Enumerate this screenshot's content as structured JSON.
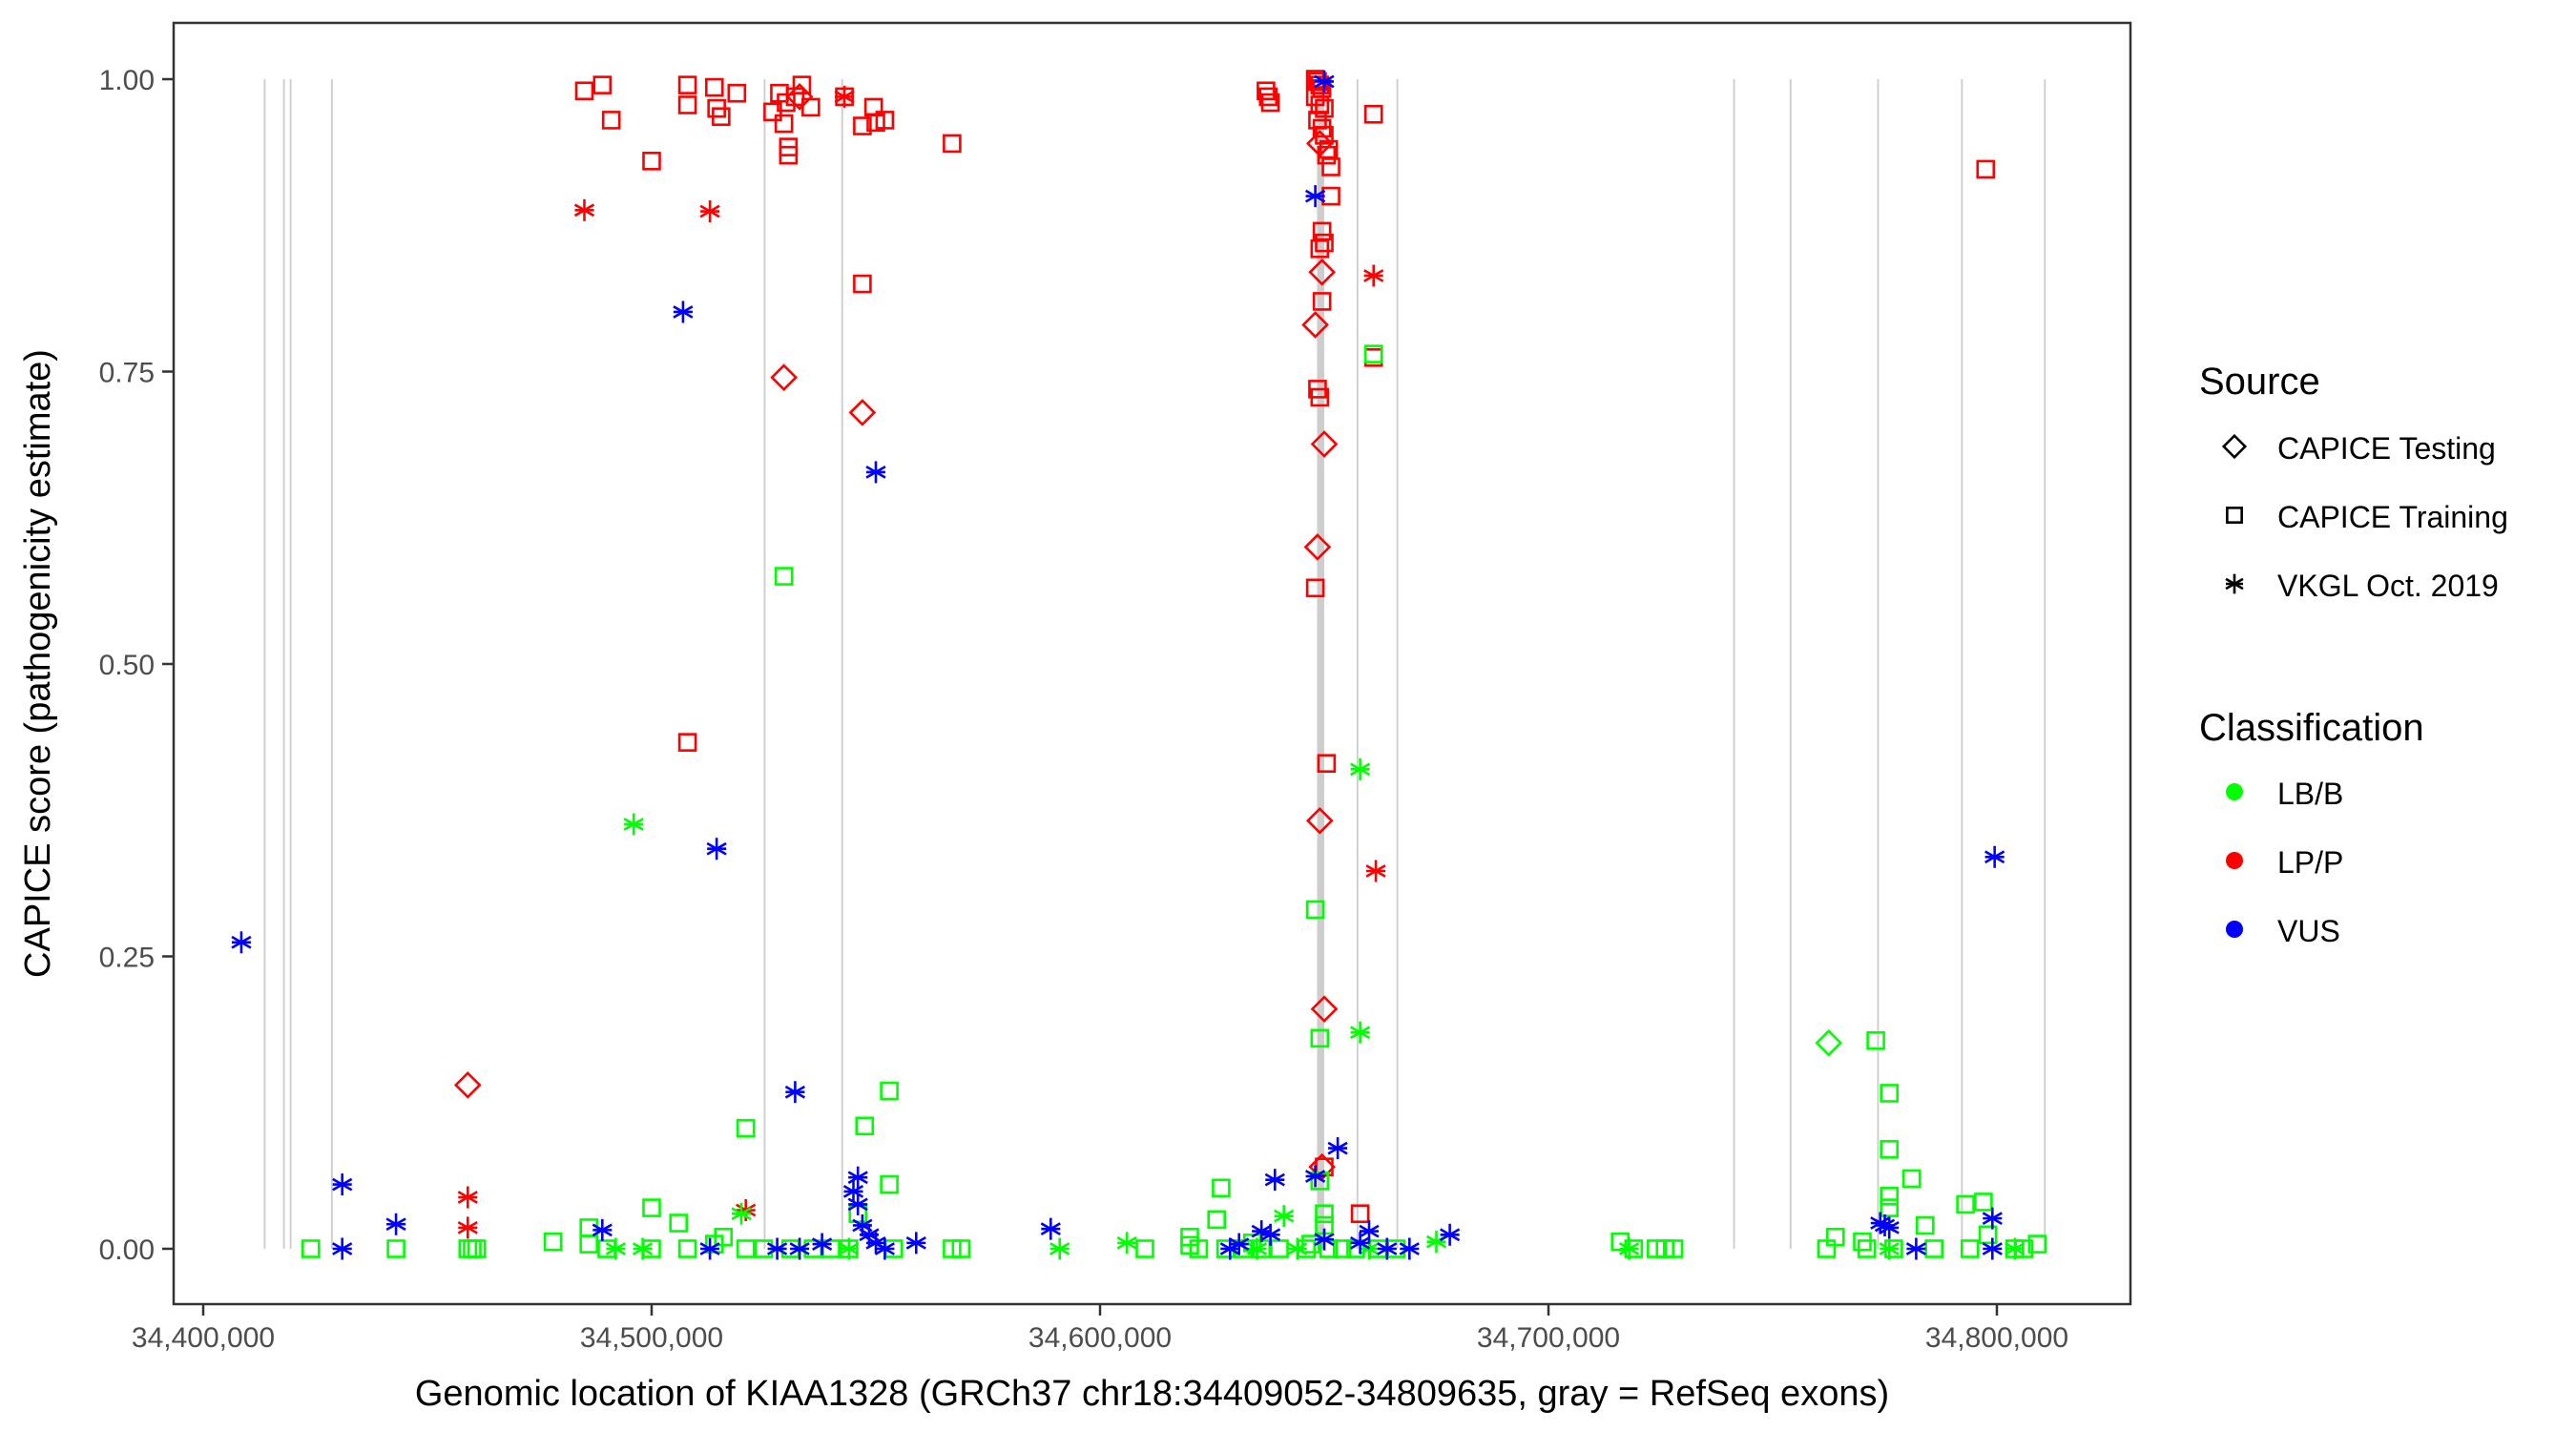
{
  "chart_data": {
    "type": "scatter",
    "title": "",
    "xlabel": "Genomic location of KIAA1328 (GRCh37 chr18:34409052-34809635, gray = RefSeq exons)",
    "ylabel": "CAPICE score (pathogenicity estimate)",
    "xlim": [
      34382000,
      34835000
    ],
    "ylim": [
      -0.05,
      1.05
    ],
    "x_ticks": [
      34400000,
      34500000,
      34600000,
      34700000,
      34800000
    ],
    "x_tick_labels": [
      "34,400,000",
      "34,500,000",
      "34,600,000",
      "34,700,000",
      "34,800,000"
    ],
    "y_ticks": [
      0,
      0.25,
      0.5,
      0.75,
      1.0
    ],
    "y_tick_labels": [
      "0.00",
      "0.25",
      "0.50",
      "0.75",
      "1.00"
    ],
    "grid": false,
    "exons": [
      {
        "start": 34413500,
        "end": 34413900
      },
      {
        "start": 34417800,
        "end": 34418200
      },
      {
        "start": 34419300,
        "end": 34419700
      },
      {
        "start": 34428500,
        "end": 34428900
      },
      {
        "start": 34525000,
        "end": 34525400
      },
      {
        "start": 34542300,
        "end": 34542700
      },
      {
        "start": 34648400,
        "end": 34650000
      },
      {
        "start": 34657200,
        "end": 34657600
      },
      {
        "start": 34666100,
        "end": 34666500
      },
      {
        "start": 34741200,
        "end": 34741600
      },
      {
        "start": 34753800,
        "end": 34754200
      },
      {
        "start": 34773300,
        "end": 34773700
      },
      {
        "start": 34792000,
        "end": 34792400
      },
      {
        "start": 34810500,
        "end": 34810900
      }
    ],
    "exon_color": "#c8c8c8",
    "legend": {
      "placement": "right",
      "source": {
        "title": "Source",
        "entries": [
          {
            "label": "CAPICE Testing",
            "shape": "diamond"
          },
          {
            "label": "CAPICE Training",
            "shape": "square"
          },
          {
            "label": "VKGL Oct. 2019",
            "shape": "asterisk"
          }
        ]
      },
      "classification": {
        "title": "Classification",
        "entries": [
          {
            "label": "LB/B",
            "color": "#00ff00"
          },
          {
            "label": "LP/P",
            "color": "#ff0000"
          },
          {
            "label": "VUS",
            "color": "#0000ff"
          }
        ]
      }
    },
    "series": [
      {
        "name": "LP/P - CAPICE Training",
        "classification": "LP/P",
        "source": "CAPICE Training",
        "points": [
          [
            34485000,
            0.99
          ],
          [
            34489000,
            0.995
          ],
          [
            34491000,
            0.965
          ],
          [
            34500000,
            0.93
          ],
          [
            34508000,
            0.995
          ],
          [
            34508000,
            0.978
          ],
          [
            34514000,
            0.993
          ],
          [
            34514500,
            0.975
          ],
          [
            34515500,
            0.968
          ],
          [
            34519000,
            0.988
          ],
          [
            34527000,
            0.972
          ],
          [
            34528500,
            0.988
          ],
          [
            34529500,
            0.962
          ],
          [
            34530000,
            0.98
          ],
          [
            34530500,
            0.942
          ],
          [
            34530500,
            0.935
          ],
          [
            34532000,
            0.985
          ],
          [
            34533500,
            0.995
          ],
          [
            34535500,
            0.976
          ],
          [
            34543000,
            0.985
          ],
          [
            34547000,
            0.96
          ],
          [
            34549500,
            0.976
          ],
          [
            34550000,
            0.963
          ],
          [
            34552000,
            0.965
          ],
          [
            34567000,
            0.945
          ],
          [
            34547000,
            0.825
          ],
          [
            34508000,
            0.433
          ],
          [
            34637000,
            0.99
          ],
          [
            34637500,
            0.985
          ],
          [
            34638000,
            0.98
          ],
          [
            34648000,
            1.0
          ],
          [
            34648500,
            0.998
          ],
          [
            34649000,
            0.995
          ],
          [
            34649500,
            0.992
          ],
          [
            34648000,
            0.985
          ],
          [
            34649000,
            0.978
          ],
          [
            34650000,
            0.975
          ],
          [
            34648500,
            0.965
          ],
          [
            34649500,
            0.958
          ],
          [
            34650000,
            0.952
          ],
          [
            34651000,
            0.94
          ],
          [
            34650500,
            0.935
          ],
          [
            34651500,
            0.925
          ],
          [
            34651500,
            0.9
          ],
          [
            34649500,
            0.87
          ],
          [
            34650000,
            0.86
          ],
          [
            34649000,
            0.855
          ],
          [
            34649500,
            0.81
          ],
          [
            34648500,
            0.735
          ],
          [
            34649000,
            0.728
          ],
          [
            34648000,
            0.565
          ],
          [
            34650500,
            0.415
          ],
          [
            34661000,
            0.97
          ],
          [
            34661000,
            0.762
          ],
          [
            34658000,
            0.03
          ],
          [
            34650000,
            0.07
          ],
          [
            34797500,
            0.923
          ]
        ]
      },
      {
        "name": "LP/P - CAPICE Testing",
        "classification": "LP/P",
        "source": "CAPICE Testing",
        "points": [
          [
            34533000,
            0.985
          ],
          [
            34529500,
            0.745
          ],
          [
            34547000,
            0.715
          ],
          [
            34649000,
            0.945
          ],
          [
            34649500,
            0.835
          ],
          [
            34648000,
            0.79
          ],
          [
            34650000,
            0.688
          ],
          [
            34648500,
            0.6
          ],
          [
            34649000,
            0.366
          ],
          [
            34650000,
            0.205
          ],
          [
            34459000,
            0.14
          ],
          [
            34649500,
            0.07
          ]
        ]
      },
      {
        "name": "LP/P - VKGL Oct. 2019",
        "classification": "LP/P",
        "source": "VKGL Oct. 2019",
        "points": [
          [
            34485000,
            0.888
          ],
          [
            34513000,
            0.887
          ],
          [
            34543000,
            0.985
          ],
          [
            34661000,
            0.832
          ],
          [
            34661500,
            0.323
          ],
          [
            34459000,
            0.044
          ],
          [
            34459000,
            0.018
          ],
          [
            34521000,
            0.033
          ]
        ]
      },
      {
        "name": "VUS - VKGL Oct. 2019",
        "classification": "VUS",
        "source": "VKGL Oct. 2019",
        "points": [
          [
            34408500,
            0.262
          ],
          [
            34431000,
            0.055
          ],
          [
            34431000,
            0.0
          ],
          [
            34443000,
            0.021
          ],
          [
            34489000,
            0.016
          ],
          [
            34507000,
            0.801
          ],
          [
            34514500,
            0.342
          ],
          [
            34532000,
            0.134
          ],
          [
            34550000,
            0.664
          ],
          [
            34545000,
            0.049
          ],
          [
            34546000,
            0.061
          ],
          [
            34546000,
            0.038
          ],
          [
            34547000,
            0.02
          ],
          [
            34548500,
            0.012
          ],
          [
            34550000,
            0.005
          ],
          [
            34552000,
            0.0
          ],
          [
            34538000,
            0.004
          ],
          [
            34533000,
            0.0
          ],
          [
            34528000,
            0.0
          ],
          [
            34513000,
            0.0
          ],
          [
            34559000,
            0.005
          ],
          [
            34589000,
            0.017
          ],
          [
            34629000,
            0.0
          ],
          [
            34631000,
            0.004
          ],
          [
            34636000,
            0.015
          ],
          [
            34638000,
            0.012
          ],
          [
            34639000,
            0.059
          ],
          [
            34648000,
            0.062
          ],
          [
            34653000,
            0.086
          ],
          [
            34648000,
            0.9
          ],
          [
            34650000,
            0.998
          ],
          [
            34650000,
            0.008
          ],
          [
            34658000,
            0.005
          ],
          [
            34660000,
            0.015
          ],
          [
            34664000,
            0.0
          ],
          [
            34669000,
            0.0
          ],
          [
            34678000,
            0.012
          ],
          [
            34774000,
            0.022
          ],
          [
            34775000,
            0.02
          ],
          [
            34776000,
            0.018
          ],
          [
            34782000,
            0.0
          ],
          [
            34799000,
            0.026
          ],
          [
            34799000,
            0.0
          ],
          [
            34799500,
            0.335
          ]
        ]
      },
      {
        "name": "LB/B - CAPICE Training",
        "classification": "LB/B",
        "source": "CAPICE Training",
        "points": [
          [
            34424000,
            0.0
          ],
          [
            34443000,
            0.0
          ],
          [
            34459000,
            0.0
          ],
          [
            34460000,
            0.0
          ],
          [
            34461000,
            0.0
          ],
          [
            34478000,
            0.006
          ],
          [
            34486000,
            0.018
          ],
          [
            34486000,
            0.004
          ],
          [
            34490000,
            0.0
          ],
          [
            34500000,
            0.035
          ],
          [
            34500000,
            0.0
          ],
          [
            34506000,
            0.022
          ],
          [
            34508000,
            0.0
          ],
          [
            34514000,
            0.004
          ],
          [
            34516000,
            0.01
          ],
          [
            34521000,
            0.103
          ],
          [
            34521000,
            0.0
          ],
          [
            34525000,
            0.0
          ],
          [
            34529500,
            0.575
          ],
          [
            34531000,
            0.0
          ],
          [
            34536000,
            0.0
          ],
          [
            34540000,
            0.0
          ],
          [
            34544000,
            0.0
          ],
          [
            34546000,
            0.03
          ],
          [
            34547500,
            0.105
          ],
          [
            34553000,
            0.135
          ],
          [
            34553000,
            0.055
          ],
          [
            34554000,
            0.0
          ],
          [
            34567000,
            0.0
          ],
          [
            34569000,
            0.0
          ],
          [
            34610000,
            0.0
          ],
          [
            34620000,
            0.003
          ],
          [
            34620000,
            0.01
          ],
          [
            34622000,
            0.0
          ],
          [
            34626000,
            0.025
          ],
          [
            34627000,
            0.052
          ],
          [
            34628000,
            0.0
          ],
          [
            34632000,
            0.0
          ],
          [
            34634000,
            0.005
          ],
          [
            34636000,
            0.0
          ],
          [
            34640000,
            0.0
          ],
          [
            34646000,
            0.0
          ],
          [
            34647000,
            0.004
          ],
          [
            34648000,
            0.29
          ],
          [
            34649000,
            0.18
          ],
          [
            34649000,
            0.058
          ],
          [
            34650000,
            0.03
          ],
          [
            34650000,
            0.02
          ],
          [
            34651000,
            0.0
          ],
          [
            34654000,
            0.0
          ],
          [
            34657000,
            0.0
          ],
          [
            34661000,
            0.765
          ],
          [
            34662000,
            0.0
          ],
          [
            34666000,
            0.0
          ],
          [
            34716000,
            0.006
          ],
          [
            34719000,
            0.0
          ],
          [
            34724000,
            0.0
          ],
          [
            34726000,
            0.0
          ],
          [
            34728000,
            0.0
          ],
          [
            34762000,
            0.0
          ],
          [
            34764000,
            0.01
          ],
          [
            34770000,
            0.006
          ],
          [
            34771000,
            0.0
          ],
          [
            34773000,
            0.178
          ],
          [
            34776000,
            0.133
          ],
          [
            34776000,
            0.085
          ],
          [
            34776000,
            0.045
          ],
          [
            34776000,
            0.035
          ],
          [
            34777000,
            0.0
          ],
          [
            34781000,
            0.06
          ],
          [
            34784000,
            0.02
          ],
          [
            34786000,
            0.0
          ],
          [
            34793000,
            0.038
          ],
          [
            34794000,
            0.0
          ],
          [
            34797000,
            0.04
          ],
          [
            34798000,
            0.012
          ],
          [
            34804000,
            0.0
          ],
          [
            34806000,
            0.0
          ],
          [
            34809000,
            0.004
          ]
        ]
      },
      {
        "name": "LB/B - CAPICE Testing",
        "classification": "LB/B",
        "source": "CAPICE Testing",
        "points": [
          [
            34762500,
            0.176
          ]
        ]
      },
      {
        "name": "LB/B - VKGL Oct. 2019",
        "classification": "LB/B",
        "source": "VKGL Oct. 2019",
        "points": [
          [
            34496000,
            0.363
          ],
          [
            34492000,
            0.0
          ],
          [
            34498000,
            0.0
          ],
          [
            34520000,
            0.03
          ],
          [
            34544000,
            0.0
          ],
          [
            34591000,
            0.0
          ],
          [
            34606000,
            0.005
          ],
          [
            34635000,
            0.0
          ],
          [
            34641000,
            0.028
          ],
          [
            34644000,
            0.0
          ],
          [
            34658000,
            0.41
          ],
          [
            34658000,
            0.185
          ],
          [
            34660000,
            0.0
          ],
          [
            34675000,
            0.006
          ],
          [
            34718000,
            0.0
          ],
          [
            34776000,
            0.0
          ],
          [
            34804000,
            0.0
          ]
        ]
      }
    ],
    "colors": {
      "LB/B": "#00ff00",
      "LP/P": "#ff0000",
      "VUS": "#0000ff"
    }
  }
}
